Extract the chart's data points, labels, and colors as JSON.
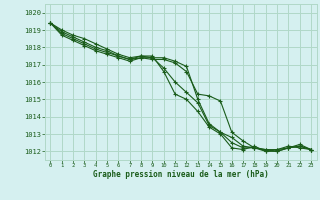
{
  "title": "Graphe pression niveau de la mer (hPa)",
  "background_color": "#d5f0f0",
  "grid_color": "#b0d8c8",
  "line_color": "#1a5c1a",
  "xlim": [
    -0.5,
    23.5
  ],
  "ylim": [
    1011.5,
    1020.5
  ],
  "yticks": [
    1012,
    1013,
    1014,
    1015,
    1016,
    1017,
    1018,
    1019,
    1020
  ],
  "xticks": [
    0,
    1,
    2,
    3,
    4,
    5,
    6,
    7,
    8,
    9,
    10,
    11,
    12,
    13,
    14,
    15,
    16,
    17,
    18,
    19,
    20,
    21,
    22,
    23
  ],
  "series": [
    [
      1019.4,
      1019.0,
      1018.7,
      1018.5,
      1018.2,
      1017.9,
      1017.6,
      1017.4,
      1017.5,
      1017.5,
      1016.6,
      1015.3,
      1015.0,
      1014.3,
      1013.4,
      1013.0,
      1012.2,
      1012.1,
      1012.3,
      1012.0,
      1012.1,
      1012.3,
      1012.2,
      1012.1
    ],
    [
      1019.4,
      1018.9,
      1018.6,
      1018.3,
      1018.0,
      1017.8,
      1017.5,
      1017.3,
      1017.4,
      1017.4,
      1016.8,
      1016.0,
      1015.4,
      1014.8,
      1013.5,
      1013.1,
      1012.5,
      1012.2,
      1012.2,
      1012.1,
      1012.0,
      1012.2,
      1012.3,
      1012.1
    ],
    [
      1019.4,
      1018.8,
      1018.5,
      1018.2,
      1017.9,
      1017.7,
      1017.5,
      1017.3,
      1017.5,
      1017.4,
      1017.4,
      1017.2,
      1016.9,
      1015.0,
      1013.6,
      1013.1,
      1012.8,
      1012.3,
      1012.2,
      1012.1,
      1012.1,
      1012.2,
      1012.4,
      1012.1
    ],
    [
      1019.4,
      1018.7,
      1018.4,
      1018.1,
      1017.8,
      1017.6,
      1017.4,
      1017.2,
      1017.4,
      1017.3,
      1017.3,
      1017.1,
      1016.6,
      1015.3,
      1015.2,
      1014.9,
      1013.1,
      1012.6,
      1012.2,
      1012.0,
      1012.0,
      1012.2,
      1012.3,
      1012.1
    ]
  ]
}
